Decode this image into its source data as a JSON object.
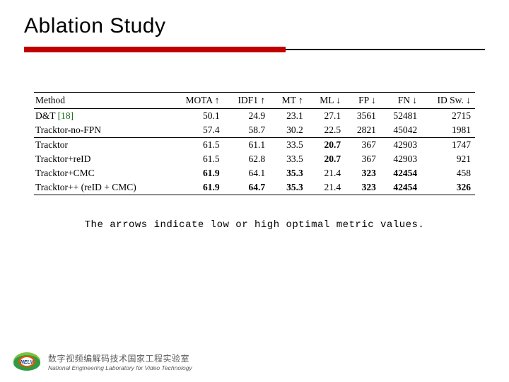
{
  "title": "Ablation Study",
  "title_underline": {
    "red_color": "#c00000",
    "line_color": "#000000"
  },
  "table": {
    "type": "table",
    "columns": [
      "Method",
      "MOTA ↑",
      "IDF1 ↑",
      "MT ↑",
      "ML ↓",
      "FP ↓",
      "FN ↓",
      "ID Sw. ↓"
    ],
    "groups": [
      {
        "rows": [
          {
            "method": "D&T",
            "ref": "[18]",
            "values": [
              "50.1",
              "24.9",
              "23.1",
              "27.1",
              "3561",
              "52481",
              "2715"
            ],
            "bold": [
              false,
              false,
              false,
              false,
              false,
              false,
              false
            ]
          },
          {
            "method": "Tracktor-no-FPN",
            "ref": "",
            "values": [
              "57.4",
              "58.7",
              "30.2",
              "22.5",
              "2821",
              "45042",
              "1981"
            ],
            "bold": [
              false,
              false,
              false,
              false,
              false,
              false,
              false
            ]
          }
        ]
      },
      {
        "rows": [
          {
            "method": "Tracktor",
            "ref": "",
            "values": [
              "61.5",
              "61.1",
              "33.5",
              "20.7",
              "367",
              "42903",
              "1747"
            ],
            "bold": [
              false,
              false,
              false,
              true,
              false,
              false,
              false
            ]
          },
          {
            "method": "Tracktor+reID",
            "ref": "",
            "values": [
              "61.5",
              "62.8",
              "33.5",
              "20.7",
              "367",
              "42903",
              "921"
            ],
            "bold": [
              false,
              false,
              false,
              true,
              false,
              false,
              false
            ]
          },
          {
            "method": "Tracktor+CMC",
            "ref": "",
            "values": [
              "61.9",
              "64.1",
              "35.3",
              "21.4",
              "323",
              "42454",
              "458"
            ],
            "bold": [
              true,
              false,
              true,
              false,
              true,
              true,
              false
            ]
          },
          {
            "method": "Tracktor++ (reID + CMC)",
            "ref": "",
            "values": [
              "61.9",
              "64.7",
              "35.3",
              "21.4",
              "323",
              "42454",
              "326"
            ],
            "bold": [
              true,
              true,
              true,
              false,
              true,
              true,
              true
            ]
          }
        ]
      }
    ]
  },
  "caption": "The arrows indicate low or high optimal metric values.",
  "footer": {
    "lab_cn": "数字视频编解码技术国家工程实验室",
    "lab_en": "National Engineering Laboratory for Video Technology",
    "logo_text": "NELV",
    "logo_colors": {
      "outer_top": "#7fc241",
      "outer_bottom": "#2e9b47",
      "inner": "#e05a00",
      "text": "#0a3a8a"
    }
  }
}
